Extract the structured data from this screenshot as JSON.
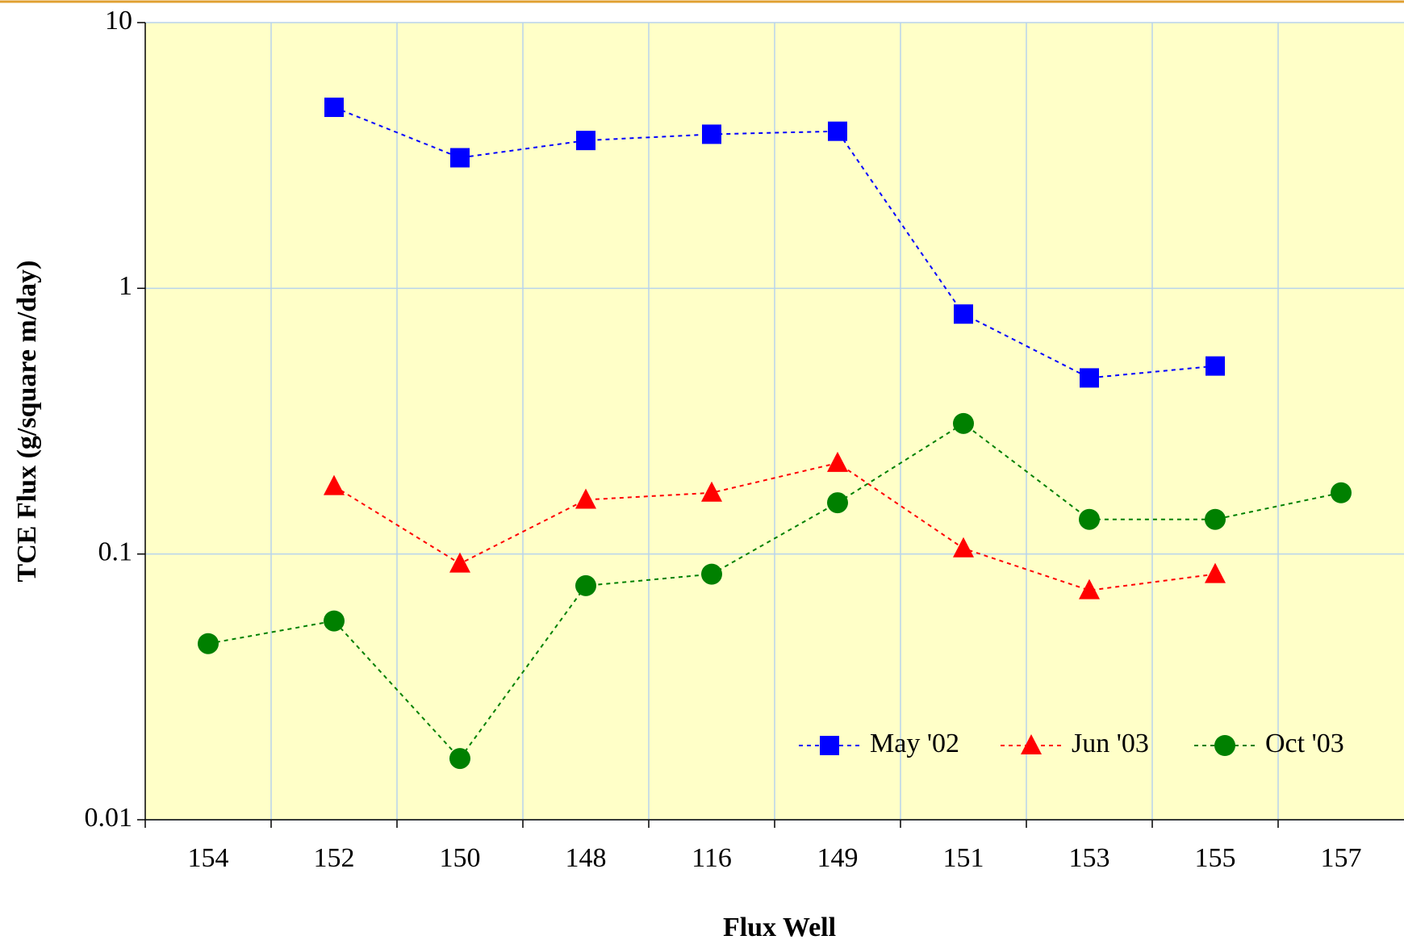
{
  "chart_data": {
    "type": "line",
    "x_label": "Flux Well",
    "y_label": "TCE Flux (g/square m/day)",
    "categories": [
      "154",
      "152",
      "150",
      "148",
      "116",
      "149",
      "151",
      "153",
      "155",
      "157"
    ],
    "series": [
      {
        "name": "May '02",
        "color": "#0000ff",
        "marker": "square",
        "values": [
          null,
          4.8,
          3.1,
          3.6,
          3.8,
          3.9,
          0.8,
          0.46,
          0.51,
          null
        ]
      },
      {
        "name": "Jun '03",
        "color": "#ff0000",
        "marker": "triangle",
        "values": [
          null,
          0.18,
          0.092,
          0.16,
          0.17,
          0.22,
          0.105,
          0.073,
          0.084,
          null
        ]
      },
      {
        "name": "Oct '03",
        "color": "#008000",
        "marker": "circle",
        "values": [
          0.046,
          0.056,
          0.017,
          0.076,
          0.084,
          0.156,
          0.31,
          0.135,
          0.135,
          0.17
        ]
      }
    ],
    "ylim": [
      0.01,
      10
    ],
    "yticks": [
      0.01,
      0.1,
      1,
      10
    ],
    "log_y": true,
    "grid": true,
    "legend": "lower right",
    "plot_background": "#ffffc8"
  }
}
